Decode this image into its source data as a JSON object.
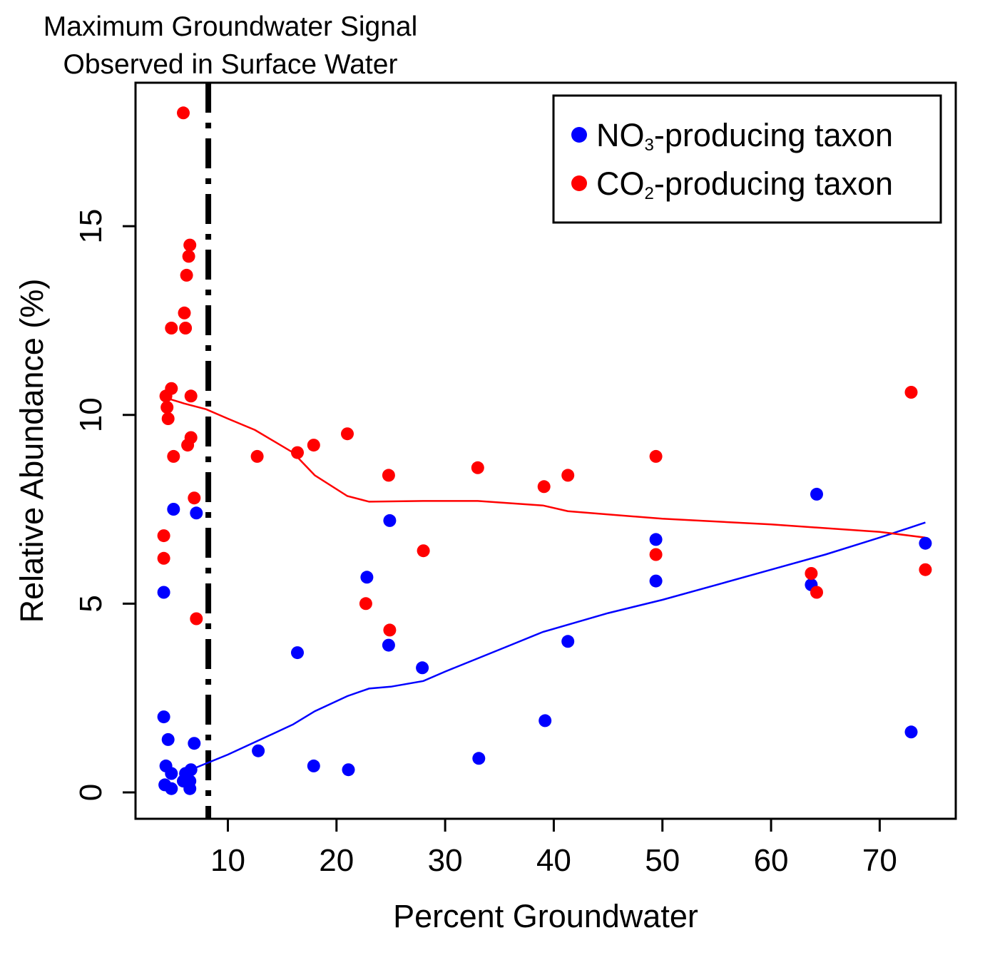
{
  "chart_data": {
    "type": "scatter",
    "annotation": [
      "Maximum Groundwater Signal",
      "Observed in Surface Water"
    ],
    "xlabel": "Percent Groundwater",
    "ylabel": "Relative Abundance (%)",
    "xlim": [
      1.5,
      77
    ],
    "ylim": [
      -0.7,
      18.8
    ],
    "xticks": [
      10,
      20,
      30,
      40,
      50,
      60,
      70
    ],
    "yticks": [
      0,
      5,
      10,
      15
    ],
    "grid": false,
    "legend_position": "top-right",
    "vline_x": 8.2,
    "series": [
      {
        "name": "NO3-producing taxon",
        "legend_main": "NO",
        "legend_sub": "3",
        "legend_rest": "-producing taxon",
        "color": "#0000ff",
        "points": [
          [
            4.1,
            2.0
          ],
          [
            4.1,
            5.3
          ],
          [
            4.2,
            0.2
          ],
          [
            4.3,
            0.7
          ],
          [
            4.5,
            1.4
          ],
          [
            4.8,
            0.5
          ],
          [
            4.8,
            0.1
          ],
          [
            5.0,
            7.5
          ],
          [
            5.9,
            0.3
          ],
          [
            6.1,
            0.5
          ],
          [
            6.5,
            0.1
          ],
          [
            6.5,
            0.3
          ],
          [
            6.6,
            0.6
          ],
          [
            6.9,
            1.3
          ],
          [
            7.1,
            7.4
          ],
          [
            12.8,
            1.1
          ],
          [
            16.4,
            3.7
          ],
          [
            17.9,
            0.7
          ],
          [
            21.1,
            0.6
          ],
          [
            22.8,
            5.7
          ],
          [
            24.8,
            3.9
          ],
          [
            24.9,
            7.2
          ],
          [
            27.9,
            3.3
          ],
          [
            33.1,
            0.9
          ],
          [
            39.2,
            1.9
          ],
          [
            41.3,
            4.0
          ],
          [
            49.4,
            6.7
          ],
          [
            49.4,
            5.6
          ],
          [
            63.7,
            5.5
          ],
          [
            64.2,
            7.9
          ],
          [
            72.9,
            1.6
          ],
          [
            74.2,
            6.6
          ]
        ],
        "trend": [
          [
            7.0,
            0.65
          ],
          [
            10,
            1.0
          ],
          [
            13,
            1.4
          ],
          [
            16,
            1.8
          ],
          [
            18,
            2.15
          ],
          [
            21,
            2.55
          ],
          [
            23,
            2.75
          ],
          [
            25,
            2.8
          ],
          [
            28,
            2.95
          ],
          [
            30,
            3.2
          ],
          [
            33,
            3.55
          ],
          [
            36,
            3.9
          ],
          [
            39,
            4.25
          ],
          [
            42,
            4.5
          ],
          [
            45,
            4.75
          ],
          [
            50,
            5.1
          ],
          [
            55,
            5.5
          ],
          [
            60,
            5.9
          ],
          [
            65,
            6.3
          ],
          [
            70,
            6.75
          ],
          [
            74.2,
            7.15
          ]
        ]
      },
      {
        "name": "CO2-producing taxon",
        "legend_main": "CO",
        "legend_sub": "2",
        "legend_rest": "-producing taxon",
        "color": "#ff0000",
        "points": [
          [
            4.1,
            6.8
          ],
          [
            4.1,
            6.2
          ],
          [
            4.3,
            10.5
          ],
          [
            4.4,
            10.2
          ],
          [
            4.5,
            9.9
          ],
          [
            4.8,
            12.3
          ],
          [
            4.8,
            10.7
          ],
          [
            5.0,
            8.9
          ],
          [
            5.9,
            18.0
          ],
          [
            6.0,
            12.7
          ],
          [
            6.1,
            12.3
          ],
          [
            6.2,
            13.7
          ],
          [
            6.3,
            9.2
          ],
          [
            6.4,
            14.2
          ],
          [
            6.5,
            14.5
          ],
          [
            6.6,
            9.4
          ],
          [
            6.6,
            10.5
          ],
          [
            6.9,
            7.8
          ],
          [
            7.1,
            4.6
          ],
          [
            12.7,
            8.9
          ],
          [
            16.4,
            9.0
          ],
          [
            17.9,
            9.2
          ],
          [
            21.0,
            9.5
          ],
          [
            22.7,
            5.0
          ],
          [
            24.8,
            8.4
          ],
          [
            24.9,
            4.3
          ],
          [
            28.0,
            6.4
          ],
          [
            33.0,
            8.6
          ],
          [
            39.1,
            8.1
          ],
          [
            41.3,
            8.4
          ],
          [
            49.4,
            8.9
          ],
          [
            49.4,
            6.3
          ],
          [
            63.7,
            5.8
          ],
          [
            64.2,
            5.3
          ],
          [
            72.9,
            10.6
          ],
          [
            74.2,
            5.9
          ]
        ],
        "trend": [
          [
            4.3,
            10.45
          ],
          [
            6,
            10.3
          ],
          [
            8,
            10.15
          ],
          [
            10,
            9.9
          ],
          [
            12.5,
            9.6
          ],
          [
            16,
            9.0
          ],
          [
            18,
            8.4
          ],
          [
            21,
            7.85
          ],
          [
            23,
            7.7
          ],
          [
            28,
            7.72
          ],
          [
            33,
            7.72
          ],
          [
            39,
            7.6
          ],
          [
            41.3,
            7.45
          ],
          [
            50,
            7.25
          ],
          [
            60,
            7.1
          ],
          [
            65,
            7.0
          ],
          [
            70,
            6.9
          ],
          [
            74.2,
            6.75
          ]
        ]
      }
    ]
  }
}
